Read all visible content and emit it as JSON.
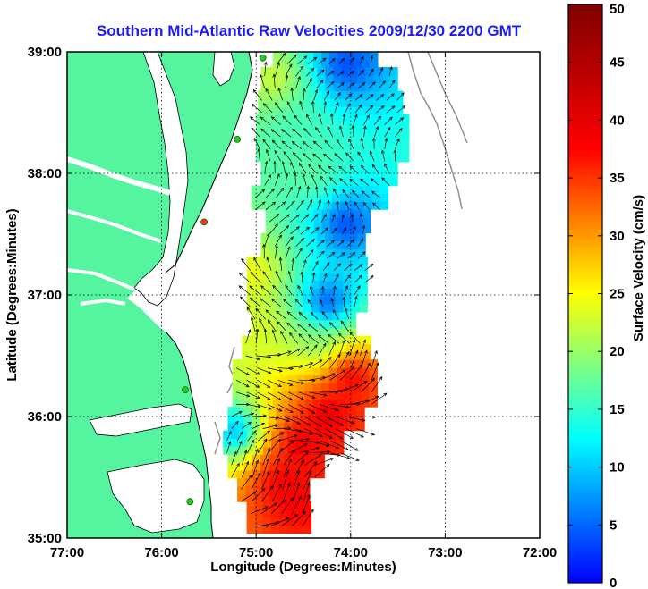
{
  "chart_data": {
    "type": "heatmap",
    "title": "Southern Mid-Atlantic Raw Velocities 2009/12/30 2200 GMT",
    "xlabel": "Longitude (Degrees:Minutes)",
    "ylabel": "Latitude (Degrees:Minutes)",
    "xlim": [
      -77,
      -72
    ],
    "ylim": [
      35,
      39
    ],
    "x_ticks": [
      -77,
      -76,
      -75,
      -74,
      -73,
      -72
    ],
    "x_tick_labels": [
      "77:00",
      "76:00",
      "75:00",
      "74:00",
      "73:00",
      "72:00"
    ],
    "y_ticks": [
      35,
      36,
      37,
      38,
      39
    ],
    "y_tick_labels": [
      "35:00",
      "36:00",
      "37:00",
      "38:00",
      "39:00"
    ],
    "grid": true,
    "colorbar": {
      "label": "Surface Velocity (cm/s)",
      "range": [
        0,
        50
      ],
      "ticks": [
        0,
        5,
        10,
        15,
        20,
        25,
        30,
        35,
        40,
        45,
        50
      ],
      "tick_labels": [
        "0",
        "5",
        "10",
        "15",
        "20",
        "25",
        "30",
        "35",
        "40",
        "45",
        "50"
      ],
      "colormap": "jet"
    },
    "coverage_rows": [
      {
        "lat": 38.92,
        "lon_min": -74.82,
        "lon_max": -73.75
      },
      {
        "lat": 38.75,
        "lon_min": -74.95,
        "lon_max": -73.55
      },
      {
        "lat": 38.55,
        "lon_min": -74.98,
        "lon_max": -73.5
      },
      {
        "lat": 38.35,
        "lon_min": -75.0,
        "lon_max": -73.45
      },
      {
        "lat": 38.15,
        "lon_min": -75.0,
        "lon_max": -73.45
      },
      {
        "lat": 37.95,
        "lon_min": -74.95,
        "lon_max": -73.55
      },
      {
        "lat": 37.75,
        "lon_min": -75.05,
        "lon_max": -73.65
      },
      {
        "lat": 37.55,
        "lon_min": -74.9,
        "lon_max": -73.8
      },
      {
        "lat": 37.35,
        "lon_min": -74.95,
        "lon_max": -73.85
      },
      {
        "lat": 37.15,
        "lon_min": -75.1,
        "lon_max": -73.85
      },
      {
        "lat": 36.95,
        "lon_min": -75.1,
        "lon_max": -73.9
      },
      {
        "lat": 36.75,
        "lon_min": -75.05,
        "lon_max": -73.95
      },
      {
        "lat": 36.55,
        "lon_min": -75.15,
        "lon_max": -73.8
      },
      {
        "lat": 36.35,
        "lon_min": -75.25,
        "lon_max": -73.75
      },
      {
        "lat": 36.15,
        "lon_min": -75.25,
        "lon_max": -73.78
      },
      {
        "lat": 35.95,
        "lon_min": -75.3,
        "lon_max": -73.9
      },
      {
        "lat": 35.75,
        "lon_min": -75.35,
        "lon_max": -74.1
      },
      {
        "lat": 35.55,
        "lon_min": -75.3,
        "lon_max": -74.3
      },
      {
        "lat": 35.35,
        "lon_min": -75.2,
        "lon_max": -74.45
      },
      {
        "lat": 35.15,
        "lon_min": -75.1,
        "lon_max": -74.5
      }
    ],
    "speed_hotspots": [
      {
        "lat": 38.75,
        "lon": -74.85,
        "speed": 30
      },
      {
        "lat": 38.35,
        "lon": -74.65,
        "speed": 22
      },
      {
        "lat": 37.95,
        "lon": -74.45,
        "speed": 24
      },
      {
        "lat": 37.15,
        "lon": -75.05,
        "speed": 32
      },
      {
        "lat": 36.7,
        "lon": -75.0,
        "speed": 30
      },
      {
        "lat": 36.55,
        "lon": -74.4,
        "speed": 25
      },
      {
        "lat": 36.3,
        "lon": -74.05,
        "speed": 48
      },
      {
        "lat": 36.0,
        "lon": -74.3,
        "speed": 48
      },
      {
        "lat": 35.75,
        "lon": -74.6,
        "speed": 47
      },
      {
        "lat": 35.45,
        "lon": -74.8,
        "speed": 46
      },
      {
        "lat": 35.25,
        "lon": -74.6,
        "speed": 45
      },
      {
        "lat": 38.85,
        "lon": -74.1,
        "speed": 8
      },
      {
        "lat": 37.55,
        "lon": -74.1,
        "speed": 7
      },
      {
        "lat": 36.9,
        "lon": -74.3,
        "speed": 5
      },
      {
        "lat": 35.85,
        "lon": -75.25,
        "speed": 10
      }
    ],
    "stations": [
      {
        "lat": 38.95,
        "lon": -74.93,
        "color": "#22cc22"
      },
      {
        "lat": 38.28,
        "lon": -75.2,
        "color": "#22cc22"
      },
      {
        "lat": 37.6,
        "lon": -75.55,
        "color": "#ee3322"
      },
      {
        "lat": 36.22,
        "lon": -75.75,
        "color": "#22cc22"
      },
      {
        "lat": 35.3,
        "lon": -75.7,
        "color": "#22cc22"
      }
    ]
  },
  "colors": {
    "land": "#55f5a0",
    "title": "#1a1aff",
    "coast": "#000000",
    "bathymetry": "#909090"
  }
}
